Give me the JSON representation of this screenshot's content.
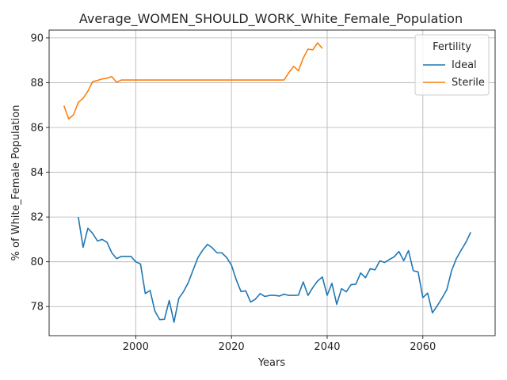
{
  "chart_data": {
    "type": "line",
    "title": "Average_WOMEN_SHOULD_WORK_White_Female_Population",
    "xlabel": "Years",
    "ylabel": "% of White_Female Population",
    "xlim": [
      1981.9,
      2075.1
    ],
    "ylim": [
      76.7,
      90.35
    ],
    "xticks": [
      2000,
      2020,
      2040,
      2060
    ],
    "yticks": [
      78,
      80,
      82,
      84,
      86,
      88,
      90
    ],
    "grid": true,
    "legend": {
      "title": "Fertility",
      "placement": "top-right"
    },
    "series": [
      {
        "name": "Ideal",
        "color": "#1f77b4",
        "x": [
          1988,
          1989,
          1990,
          1991,
          1992,
          1993,
          1994,
          1995,
          1996,
          1997,
          1998,
          1999,
          2000,
          2001,
          2002,
          2003,
          2004,
          2005,
          2006,
          2007,
          2008,
          2009,
          2010,
          2011,
          2012,
          2013,
          2014,
          2015,
          2016,
          2017,
          2018,
          2019,
          2020,
          2021,
          2022,
          2023,
          2024,
          2025,
          2026,
          2027,
          2028,
          2029,
          2030,
          2031,
          2032,
          2033,
          2034,
          2035,
          2036,
          2037,
          2038,
          2039,
          2040,
          2041,
          2042,
          2043,
          2044,
          2045,
          2046,
          2047,
          2048,
          2049,
          2050,
          2051,
          2052,
          2053,
          2054,
          2055,
          2056,
          2057,
          2058,
          2059,
          2060,
          2061,
          2062,
          2063,
          2064,
          2065,
          2066,
          2067,
          2068,
          2069,
          2070
        ],
        "values": [
          82.0,
          80.65,
          81.5,
          81.27,
          80.93,
          81.0,
          80.87,
          80.4,
          80.14,
          80.24,
          80.24,
          80.24,
          80.0,
          79.9,
          78.58,
          78.72,
          77.8,
          77.42,
          77.43,
          78.27,
          77.3,
          78.37,
          78.67,
          79.08,
          79.64,
          80.19,
          80.52,
          80.78,
          80.62,
          80.4,
          80.4,
          80.19,
          79.85,
          79.2,
          78.67,
          78.7,
          78.2,
          78.33,
          78.58,
          78.45,
          78.5,
          78.5,
          78.47,
          78.55,
          78.5,
          78.5,
          78.51,
          79.1,
          78.5,
          78.85,
          79.14,
          79.32,
          78.5,
          79.04,
          78.1,
          78.8,
          78.66,
          78.98,
          79.0,
          79.5,
          79.29,
          79.69,
          79.64,
          80.04,
          79.97,
          80.1,
          80.22,
          80.46,
          80.05,
          80.5,
          79.6,
          79.55,
          78.4,
          78.6,
          77.72,
          78.03,
          78.38,
          78.75,
          79.6,
          80.14,
          80.52,
          80.87,
          81.32
        ]
      },
      {
        "name": "Sterile",
        "color": "#ff7f0e",
        "x": [
          1985,
          1986,
          1987,
          1988,
          1989,
          1990,
          1991,
          1992,
          1993,
          1994,
          1995,
          1996,
          1997,
          1998,
          1999,
          2000,
          2001,
          2002,
          2003,
          2004,
          2005,
          2006,
          2007,
          2008,
          2009,
          2010,
          2011,
          2012,
          2013,
          2014,
          2015,
          2016,
          2017,
          2018,
          2019,
          2020,
          2021,
          2022,
          2023,
          2024,
          2025,
          2026,
          2027,
          2028,
          2029,
          2030,
          2031,
          2032,
          2033,
          2034,
          2035,
          2036,
          2037,
          2038,
          2039
        ],
        "values": [
          86.97,
          86.38,
          86.57,
          87.12,
          87.3,
          87.62,
          88.05,
          88.1,
          88.17,
          88.2,
          88.27,
          88.02,
          88.12,
          88.12,
          88.12,
          88.12,
          88.12,
          88.12,
          88.12,
          88.12,
          88.12,
          88.12,
          88.12,
          88.12,
          88.12,
          88.12,
          88.12,
          88.12,
          88.12,
          88.12,
          88.12,
          88.12,
          88.12,
          88.12,
          88.12,
          88.12,
          88.12,
          88.12,
          88.12,
          88.12,
          88.12,
          88.12,
          88.12,
          88.12,
          88.12,
          88.12,
          88.12,
          88.45,
          88.73,
          88.53,
          89.1,
          89.5,
          89.47,
          89.78,
          89.53
        ]
      }
    ]
  }
}
